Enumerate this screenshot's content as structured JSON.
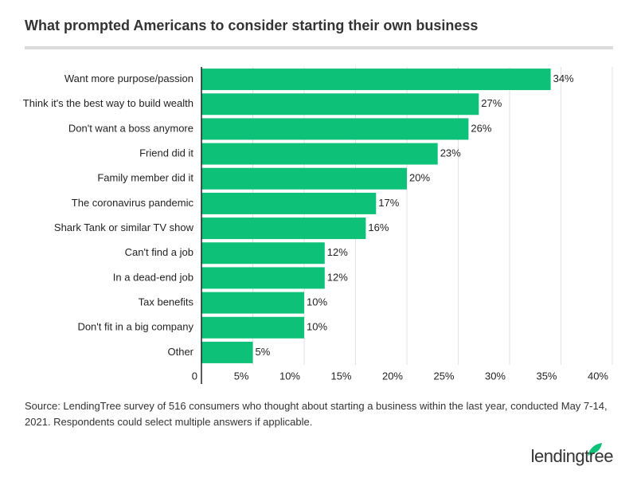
{
  "chart_data": {
    "type": "bar",
    "orientation": "horizontal",
    "title": "What prompted Americans to consider starting their own business",
    "categories": [
      "Want more purpose/passion",
      "Think it's the best way to build wealth",
      "Don't want a boss anymore",
      "Friend did it",
      "Family member did it",
      "The coronavirus pandemic",
      "Shark Tank or similar TV show",
      "Can't find a job",
      "In a dead-end job",
      "Tax benefits",
      "Don't fit in a big company",
      "Other"
    ],
    "values": [
      34,
      27,
      26,
      23,
      20,
      17,
      16,
      12,
      12,
      10,
      10,
      5
    ],
    "value_labels": [
      "34%",
      "27%",
      "26%",
      "23%",
      "20%",
      "17%",
      "16%",
      "12%",
      "12%",
      "10%",
      "10%",
      "5%"
    ],
    "color": "#0ec178",
    "xlim": [
      0,
      40
    ],
    "xticks": [
      0,
      {
        "value": 5,
        "label": "5%"
      },
      {
        "value": 10,
        "label": "10%"
      },
      {
        "value": 15,
        "label": "15%"
      },
      {
        "value": 20,
        "label": "20%"
      },
      {
        "value": 25,
        "label": "25%"
      },
      {
        "value": 30,
        "label": "30%"
      },
      {
        "value": 35,
        "label": "35%"
      },
      {
        "value": 40,
        "label": "40%"
      }
    ],
    "grid": true
  },
  "footer": {
    "source": "Source: LendingTree survey of 516 consumers who thought about starting a business within the last year, conducted May 7-14, 2021. Respondents could select multiple answers if applicable.",
    "brand": "lendingtree"
  }
}
